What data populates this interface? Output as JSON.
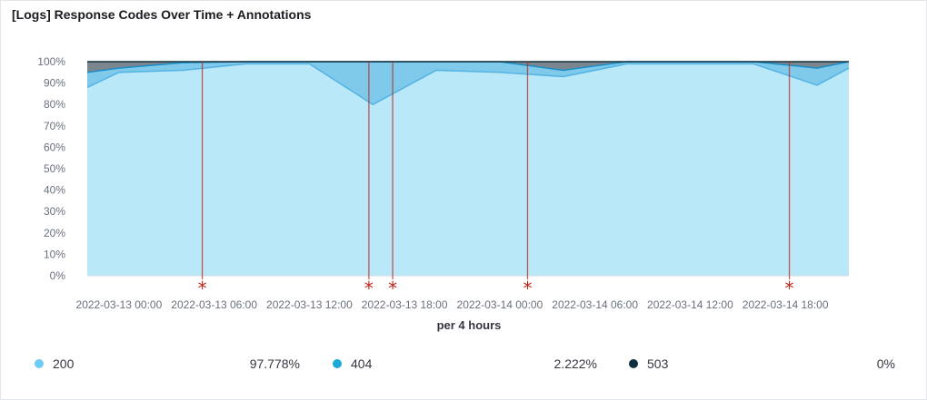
{
  "panel": {
    "title": "[Logs] Response Codes Over Time + Annotations"
  },
  "chart_data": {
    "type": "area",
    "stacked": "percentage",
    "xlabel": "per 4 hours",
    "ylabel": "",
    "ylim": [
      0,
      100
    ],
    "y_ticks": [
      "0%",
      "10%",
      "20%",
      "30%",
      "40%",
      "50%",
      "60%",
      "70%",
      "80%",
      "90%",
      "100%"
    ],
    "x_ticks": [
      "2022-03-13 00:00",
      "2022-03-13 06:00",
      "2022-03-13 12:00",
      "2022-03-13 18:00",
      "2022-03-14 00:00",
      "2022-03-14 06:00",
      "2022-03-14 12:00",
      "2022-03-14 18:00"
    ],
    "x_hours": [
      -2,
      0,
      4,
      8,
      12,
      16,
      20,
      24,
      28,
      32,
      36,
      40,
      44,
      46
    ],
    "series": [
      {
        "name": "200",
        "color": "#54b3e4",
        "fill": "#b9e8f9",
        "cumulative_top": [
          88,
          95,
          96,
          99,
          99,
          80,
          96,
          95,
          93,
          99,
          99,
          99,
          89,
          97
        ]
      },
      {
        "name": "404",
        "color": "#1b8ec7",
        "fill": "#7fcaeb",
        "cumulative_top": [
          95,
          97,
          99.5,
          100,
          100,
          100,
          100,
          100,
          96,
          100,
          100,
          100,
          97,
          100
        ]
      },
      {
        "name": "503",
        "color": "#17303d",
        "fill": "#7b868f",
        "cumulative_top": [
          100,
          100,
          100,
          100,
          100,
          100,
          100,
          100,
          100,
          100,
          100,
          100,
          100,
          100
        ]
      }
    ],
    "annotations": {
      "marker": "*",
      "color": "#bd271e",
      "x_hours": [
        5.25,
        15.75,
        17.25,
        25.75,
        42.25
      ]
    },
    "grid": true,
    "legend": {
      "position": "bottom",
      "items": [
        {
          "name": "200",
          "value": "97.778%",
          "color": "#6dccf4"
        },
        {
          "name": "404",
          "value": "2.222%",
          "color": "#1ba9d8"
        },
        {
          "name": "503",
          "value": "0%",
          "color": "#0c2e3e"
        }
      ]
    }
  }
}
